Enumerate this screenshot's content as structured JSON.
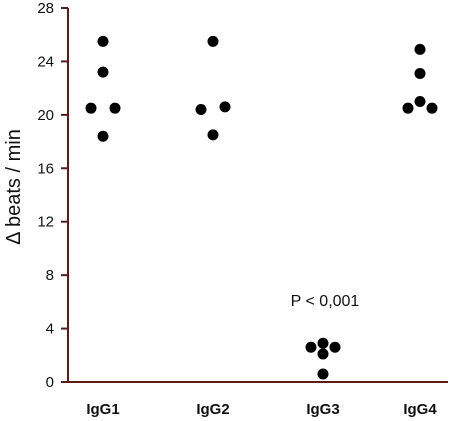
{
  "chart_data": {
    "type": "scatter",
    "ylabel": "Δ beats / min",
    "ylim": [
      0,
      28
    ],
    "yticks": [
      "0",
      "4",
      "8",
      "12",
      "16",
      "20",
      "24",
      "28"
    ],
    "categories": [
      "IgG1",
      "IgG2",
      "IgG3",
      "IgG4"
    ],
    "grid": false,
    "points": [
      {
        "category": "IgG1",
        "y": 25.5,
        "jitter": 0
      },
      {
        "category": "IgG1",
        "y": 23.2,
        "jitter": 0
      },
      {
        "category": "IgG1",
        "y": 20.5,
        "jitter": -1
      },
      {
        "category": "IgG1",
        "y": 20.5,
        "jitter": 1
      },
      {
        "category": "IgG1",
        "y": 18.4,
        "jitter": 0
      },
      {
        "category": "IgG2",
        "y": 25.5,
        "jitter": 0
      },
      {
        "category": "IgG2",
        "y": 20.4,
        "jitter": -1
      },
      {
        "category": "IgG2",
        "y": 20.6,
        "jitter": 1
      },
      {
        "category": "IgG2",
        "y": 18.5,
        "jitter": 0
      },
      {
        "category": "IgG3",
        "y": 2.9,
        "jitter": 0
      },
      {
        "category": "IgG3",
        "y": 2.6,
        "jitter": -1
      },
      {
        "category": "IgG3",
        "y": 2.6,
        "jitter": 1
      },
      {
        "category": "IgG3",
        "y": 2.1,
        "jitter": 0
      },
      {
        "category": "IgG3",
        "y": 0.6,
        "jitter": 0
      },
      {
        "category": "IgG4",
        "y": 24.9,
        "jitter": 0
      },
      {
        "category": "IgG4",
        "y": 23.1,
        "jitter": 0
      },
      {
        "category": "IgG4",
        "y": 21.0,
        "jitter": 0
      },
      {
        "category": "IgG4",
        "y": 20.5,
        "jitter": -1
      },
      {
        "category": "IgG4",
        "y": 20.5,
        "jitter": 1
      }
    ],
    "annotations": [
      {
        "text": "P < 0,001",
        "category": "IgG3",
        "y": 5.7
      }
    ],
    "colors": {
      "axis": "#5c1a1a",
      "marker": "#000000"
    }
  }
}
